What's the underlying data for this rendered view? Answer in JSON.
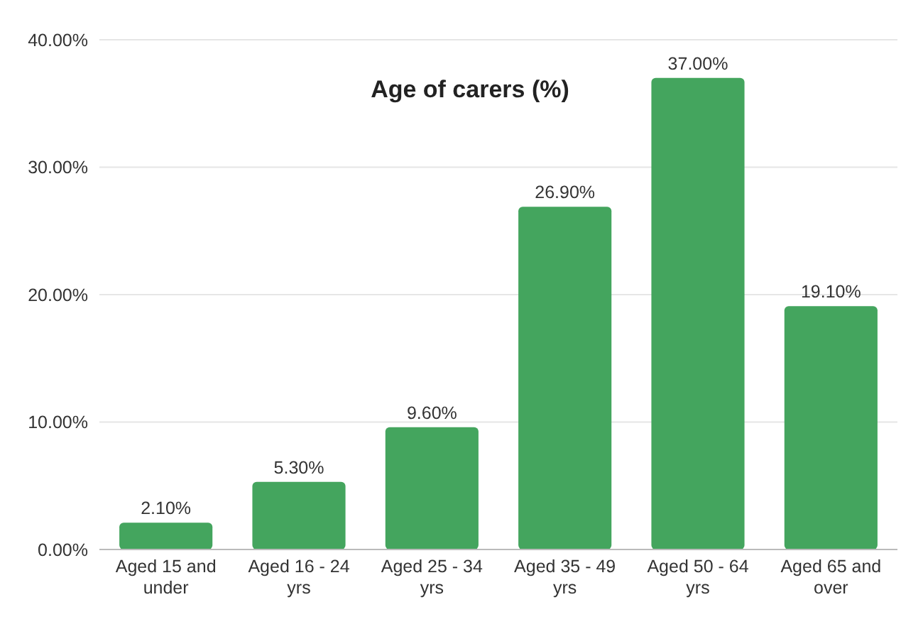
{
  "chart_data": {
    "type": "bar",
    "title": "Age of carers (%)",
    "categories": [
      "Aged 15 and under",
      "Aged 16 - 24 yrs",
      "Aged 25 - 34 yrs",
      "Aged 35 - 49 yrs",
      "Aged 50 - 64 yrs",
      "Aged 65 and over"
    ],
    "values": [
      2.1,
      5.3,
      9.6,
      26.9,
      37,
      19.1
    ],
    "value_labels": [
      "2.10%",
      "5.30%",
      "9.60%",
      "26.90%",
      "37.00%",
      "19.10%"
    ],
    "color": "#44a55e",
    "ylim": [
      0,
      40
    ],
    "yticks": [
      {
        "value": 0,
        "label": "0.00%"
      },
      {
        "value": 10,
        "label": "10.00%"
      },
      {
        "value": 20,
        "label": "20.00%"
      },
      {
        "value": 30,
        "label": "30.00%"
      },
      {
        "value": 40,
        "label": "40.00%"
      }
    ],
    "grid": "y"
  }
}
